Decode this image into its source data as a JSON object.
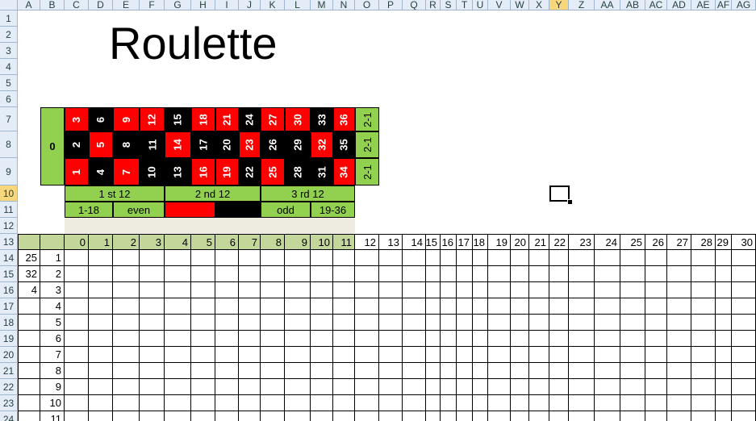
{
  "column_headers": [
    "A",
    "B",
    "C",
    "D",
    "E",
    "F",
    "G",
    "H",
    "I",
    "J",
    "K",
    "L",
    "M",
    "N",
    "O",
    "P",
    "Q",
    "R",
    "S",
    "T",
    "U",
    "V",
    "W",
    "X",
    "Y",
    "Z",
    "AA",
    "AB",
    "AC",
    "AD",
    "AE",
    "AF",
    "AG"
  ],
  "row_headers": [
    1,
    2,
    3,
    4,
    5,
    6,
    7,
    8,
    9,
    10,
    11,
    12,
    13,
    14,
    15,
    16,
    17,
    18,
    19,
    20,
    21,
    22,
    23,
    24
  ],
  "title": "Roulette",
  "board": {
    "zero": "0",
    "rows": [
      [
        3,
        6,
        9,
        12,
        15,
        18,
        21,
        24,
        27,
        30,
        33,
        36
      ],
      [
        2,
        5,
        8,
        11,
        14,
        17,
        20,
        23,
        26,
        29,
        32,
        35
      ],
      [
        1,
        4,
        7,
        10,
        13,
        16,
        19,
        22,
        25,
        28,
        31,
        34
      ]
    ],
    "colors": [
      [
        "#ff0000",
        "#000000",
        "#ff0000",
        "#ff0000",
        "#000000",
        "#ff0000",
        "#ff0000",
        "#000000",
        "#ff0000",
        "#ff0000",
        "#000000",
        "#ff0000"
      ],
      [
        "#000000",
        "#ff0000",
        "#000000",
        "#000000",
        "#ff0000",
        "#000000",
        "#000000",
        "#ff0000",
        "#000000",
        "#000000",
        "#ff0000",
        "#000000"
      ],
      [
        "#ff0000",
        "#000000",
        "#ff0000",
        "#000000",
        "#000000",
        "#ff0000",
        "#ff0000",
        "#000000",
        "#ff0000",
        "#000000",
        "#000000",
        "#ff0000"
      ]
    ],
    "column_bets": [
      "2-1",
      "2-1",
      "2-1"
    ],
    "dozens": [
      "1 st 12",
      "2 nd 12",
      "3 rd 12"
    ],
    "outside": [
      "1-18",
      "even",
      "odd",
      "19-36"
    ]
  },
  "header_row": [
    0,
    1,
    2,
    3,
    4,
    5,
    6,
    7,
    8,
    9,
    10,
    11,
    12,
    13,
    14,
    15,
    16,
    17,
    18,
    19,
    20,
    21,
    22,
    23,
    24,
    25,
    26,
    27,
    28,
    29,
    30
  ],
  "col_a": [
    25,
    32,
    4
  ],
  "col_b": [
    1,
    2,
    3,
    4,
    5,
    6,
    7,
    8,
    9,
    10,
    11
  ]
}
